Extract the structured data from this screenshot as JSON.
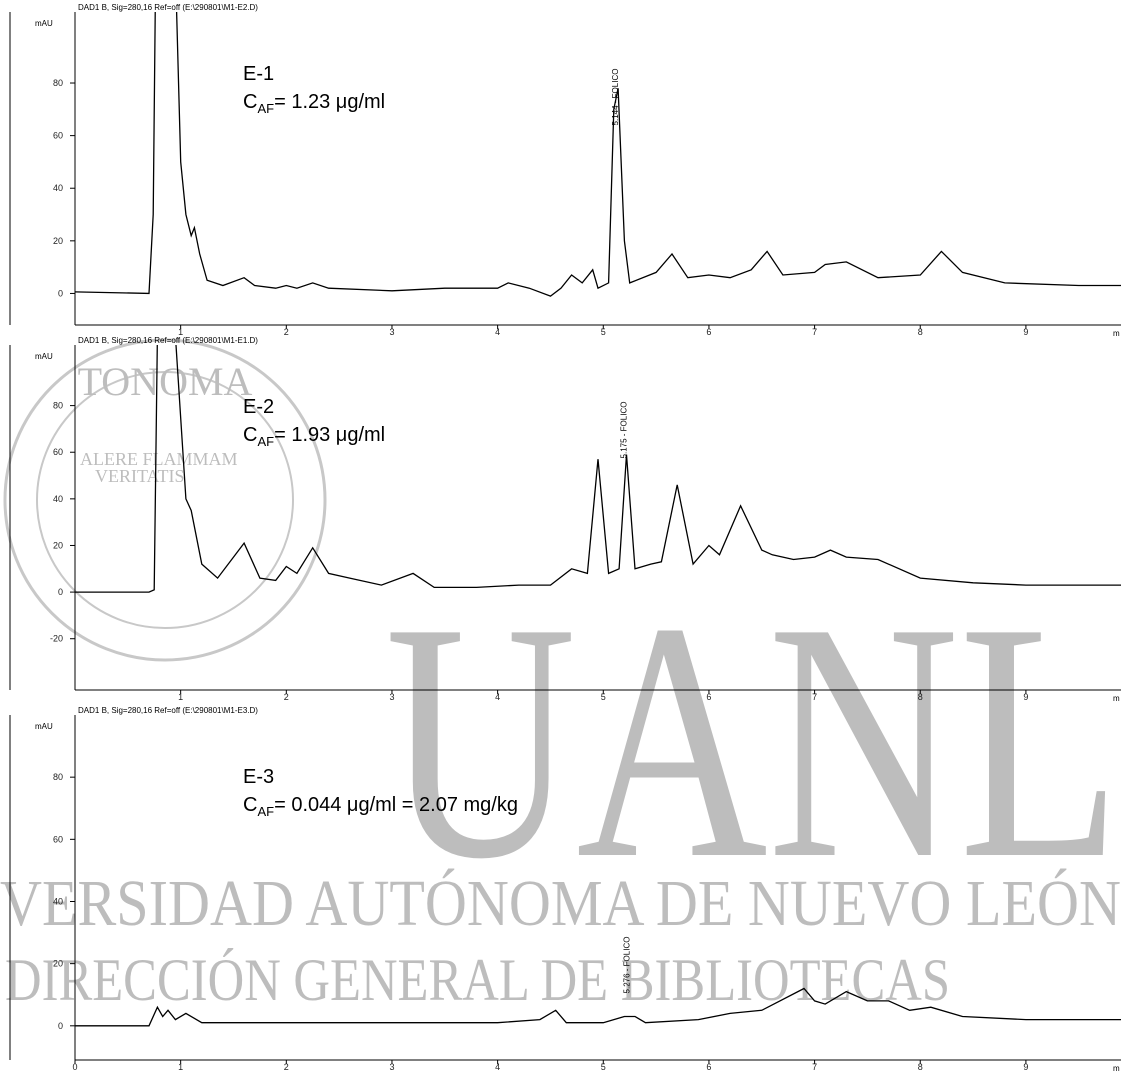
{
  "watermark": {
    "big": "UANL",
    "line1": "VERSIDAD AUTÓNOMA DE NUEVO LEÓN",
    "line2": "DIRECCIÓN GENERAL DE BIBLIOTECAS",
    "seal_top": "TONOMA",
    "motto1": "ALERE FLAMMAM",
    "motto2": "VERITATIS"
  },
  "chart_data": [
    {
      "type": "line",
      "header": "DAD1 B, Sig=280,16 Ref=off (E:\\290801\\M1-E2.D)",
      "y_label": "mAU",
      "x_label": "m",
      "sample": "E-1",
      "conc": {
        "symbol": "C",
        "subscript": "AF",
        "text": "= 1.23 μg/ml"
      },
      "peak_label": "5.144 - FOLICO",
      "peak_x": 5.14,
      "xlim": [
        0,
        9.9
      ],
      "xticks": [
        1,
        2,
        3,
        4,
        5,
        6,
        7,
        8,
        9
      ],
      "ylim": [
        -12,
        107
      ],
      "yticks": [
        0,
        20,
        40,
        60,
        80
      ],
      "series": [
        {
          "name": "E-1",
          "color": "#000000",
          "x": [
            0,
            0.7,
            0.74,
            0.76,
            0.96,
            1.0,
            1.05,
            1.1,
            1.13,
            1.18,
            1.25,
            1.4,
            1.6,
            1.7,
            1.9,
            2.0,
            2.1,
            2.25,
            2.4,
            3.0,
            3.5,
            4.0,
            4.1,
            4.3,
            4.5,
            4.6,
            4.7,
            4.8,
            4.9,
            4.95,
            5.05,
            5.1,
            5.14,
            5.2,
            5.25,
            5.5,
            5.65,
            5.8,
            6.0,
            6.2,
            6.4,
            6.55,
            6.7,
            7.0,
            7.1,
            7.3,
            7.6,
            8.0,
            8.2,
            8.4,
            8.8,
            9.5,
            9.9
          ],
          "values": [
            0.6,
            0,
            30,
            110,
            110,
            50,
            30,
            22,
            25,
            15,
            5,
            3,
            6,
            3,
            2,
            3,
            2,
            4,
            2,
            1,
            2,
            2,
            4,
            2,
            -1,
            2,
            7,
            4,
            9,
            2,
            4,
            70,
            78,
            20,
            4,
            8,
            15,
            6,
            7,
            6,
            9,
            16,
            7,
            8,
            11,
            12,
            6,
            7,
            16,
            8,
            4,
            3,
            3
          ]
        }
      ]
    },
    {
      "type": "line",
      "header": "DAD1 B, Sig=280,16 Ref=off (E:\\290801\\M1-E1.D)",
      "y_label": "mAU",
      "x_label": "m",
      "sample": "E-2",
      "conc": {
        "symbol": "C",
        "subscript": "AF",
        "text": "= 1.93 μg/ml"
      },
      "peak_label": "5.175 - FOLICO",
      "peak_x": 5.22,
      "xlim": [
        0,
        9.9
      ],
      "xticks": [
        1,
        2,
        3,
        4,
        5,
        6,
        7,
        8,
        9
      ],
      "ylim": [
        -42,
        106
      ],
      "yticks": [
        -20,
        0,
        20,
        40,
        60,
        80
      ],
      "series": [
        {
          "name": "E-2",
          "color": "#000000",
          "x": [
            0,
            0.7,
            0.75,
            0.78,
            0.95,
            1.05,
            1.1,
            1.2,
            1.35,
            1.5,
            1.6,
            1.75,
            1.9,
            2.0,
            2.1,
            2.25,
            2.4,
            2.6,
            2.9,
            3.2,
            3.4,
            3.8,
            4.2,
            4.5,
            4.7,
            4.85,
            4.95,
            5.05,
            5.15,
            5.22,
            5.3,
            5.45,
            5.55,
            5.7,
            5.85,
            6.0,
            6.1,
            6.3,
            6.5,
            6.6,
            6.8,
            7.0,
            7.15,
            7.3,
            7.6,
            8.0,
            8.5,
            9.0,
            9.9
          ],
          "values": [
            0,
            0,
            1,
            110,
            110,
            40,
            35,
            12,
            6,
            15,
            21,
            6,
            5,
            11,
            8,
            19,
            8,
            6,
            3,
            8,
            2,
            2,
            3,
            3,
            10,
            8,
            57,
            8,
            10,
            59,
            10,
            12,
            13,
            46,
            12,
            20,
            16,
            37,
            18,
            16,
            14,
            15,
            18,
            15,
            14,
            6,
            4,
            3,
            3
          ]
        }
      ]
    },
    {
      "type": "line",
      "header": "DAD1 B, Sig=280,16 Ref=off (E:\\290801\\M1-E3.D)",
      "y_label": "mAU",
      "x_label": "m",
      "sample": "E-3",
      "conc": {
        "symbol": "C",
        "subscript": "AF",
        "text": "= 0.044 μg/ml   = 2.07 mg/kg"
      },
      "peak_label": "5.276 - FOLICO",
      "peak_x": 5.25,
      "xlim": [
        0,
        9.9
      ],
      "xticks": [
        0,
        1,
        2,
        3,
        4,
        5,
        6,
        7,
        8,
        9
      ],
      "ylim": [
        -11,
        100
      ],
      "yticks": [
        0,
        20,
        40,
        60,
        80
      ],
      "series": [
        {
          "name": "E-3",
          "color": "#000000",
          "x": [
            0,
            0.7,
            0.78,
            0.83,
            0.88,
            0.95,
            1.05,
            1.2,
            2.0,
            3.0,
            4.0,
            4.4,
            4.55,
            4.65,
            5.0,
            5.2,
            5.3,
            5.4,
            5.9,
            6.2,
            6.5,
            6.9,
            7.0,
            7.1,
            7.3,
            7.5,
            7.7,
            7.9,
            8.1,
            8.4,
            9.0,
            9.9
          ],
          "values": [
            0,
            0,
            6,
            3,
            5,
            2,
            4,
            1,
            1,
            1,
            1,
            2,
            5,
            1,
            1,
            3,
            3,
            1,
            2,
            4,
            5,
            12,
            8,
            7,
            11,
            8,
            8,
            5,
            6,
            3,
            2,
            2
          ]
        }
      ]
    }
  ]
}
